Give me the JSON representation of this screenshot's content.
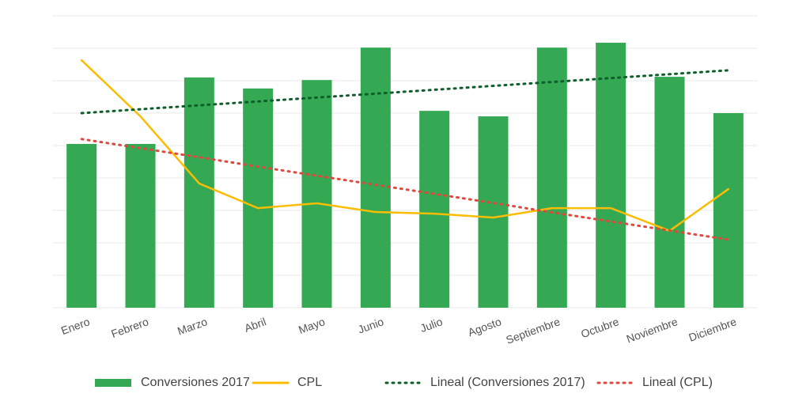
{
  "chart_data": {
    "type": "bar",
    "categories": [
      "Enero",
      "Febrero",
      "Marzo",
      "Abril",
      "Mayo",
      "Junio",
      "Julio",
      "Agosto",
      "Septiembre",
      "Octubre",
      "Noviembre",
      "Diciembre"
    ],
    "series": [
      {
        "name": "Conversiones 2017",
        "type": "bar",
        "color": "#34a853",
        "values": [
          5.05,
          5.05,
          7.1,
          6.76,
          7.02,
          8.02,
          6.07,
          5.9,
          8.02,
          8.17,
          7.12,
          6.0
        ]
      },
      {
        "name": "CPL",
        "type": "line",
        "color": "#fbbc04",
        "values": [
          7.63,
          5.9,
          3.83,
          3.07,
          3.22,
          2.95,
          2.9,
          2.78,
          3.07,
          3.07,
          2.37,
          3.66
        ]
      },
      {
        "name": "Lineal (Conversiones 2017)",
        "type": "line",
        "dash": "dotted",
        "color": "#0d5e2a",
        "values": [
          6.0,
          6.12,
          6.24,
          6.36,
          6.48,
          6.6,
          6.72,
          6.84,
          6.96,
          7.08,
          7.2,
          7.32
        ]
      },
      {
        "name": "Lineal (CPL)",
        "type": "line",
        "dash": "dotted",
        "color": "#e0483e",
        "values": [
          5.2,
          4.92,
          4.64,
          4.35,
          4.07,
          3.79,
          3.51,
          3.23,
          2.94,
          2.66,
          2.38,
          2.1
        ]
      }
    ],
    "ylim": [
      0,
      9
    ],
    "yticks": [
      0,
      1,
      2,
      3,
      4,
      5,
      6,
      7,
      8,
      9
    ],
    "grid": true,
    "tick_labels": false,
    "legend": "bottom"
  }
}
